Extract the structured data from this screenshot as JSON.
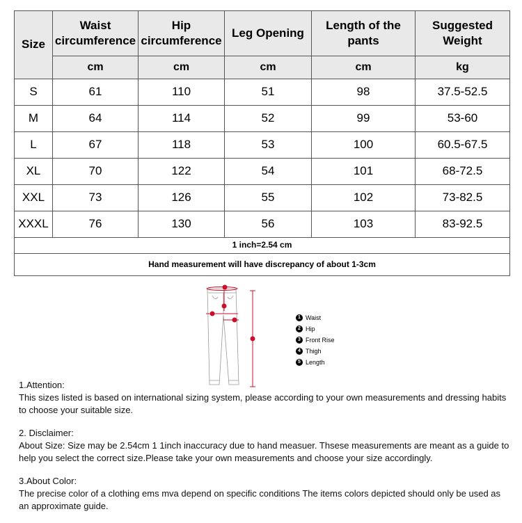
{
  "table": {
    "headers": [
      "Size",
      "Waist circumference",
      "Hip circumference",
      "Leg Opening",
      "Length of the pants",
      "Suggested Weight"
    ],
    "units": [
      "cm",
      "cm",
      "cm",
      "cm",
      "kg"
    ],
    "rows": [
      [
        "S",
        "61",
        "110",
        "51",
        "98",
        "37.5-52.5"
      ],
      [
        "M",
        "64",
        "114",
        "52",
        "99",
        "53-60"
      ],
      [
        "L",
        "67",
        "118",
        "53",
        "100",
        "60.5-67.5"
      ],
      [
        "XL",
        "70",
        "122",
        "54",
        "101",
        "68-72.5"
      ],
      [
        "XXL",
        "73",
        "126",
        "55",
        "102",
        "73-82.5"
      ],
      [
        "XXXL",
        "76",
        "130",
        "56",
        "103",
        "83-92.5"
      ]
    ],
    "note1": "1 inch=2.54 cm",
    "note2": "Hand measurement will have discrepancy of about 1-3cm"
  },
  "diagram": {
    "accent": "#c8102e",
    "legend": [
      {
        "num": "1",
        "label": "Waist"
      },
      {
        "num": "2",
        "label": "Hip"
      },
      {
        "num": "3",
        "label": "Front Rise"
      },
      {
        "num": "4",
        "label": "Thigh"
      },
      {
        "num": "5",
        "label": "Length"
      }
    ]
  },
  "notes": [
    {
      "title": "1.Attention:",
      "body": "This sizes listed is based on international sizing system, please according to your own measurements and dressing habits to choose your suitable size."
    },
    {
      "title": "2. Disclaimer:",
      "body": "About Size: Size may be 2.54cm 1 1inch inaccuracy due to hand measuer. Thsese measurements are meant as a guide to help you select the correct size.Please take your own measurements and choose your size accordingly."
    },
    {
      "title": "3.About Color:",
      "body": "The precise color of a clothing ems mva depend on specific conditions The items colors depicted should only be   used as an approximate guide."
    }
  ]
}
